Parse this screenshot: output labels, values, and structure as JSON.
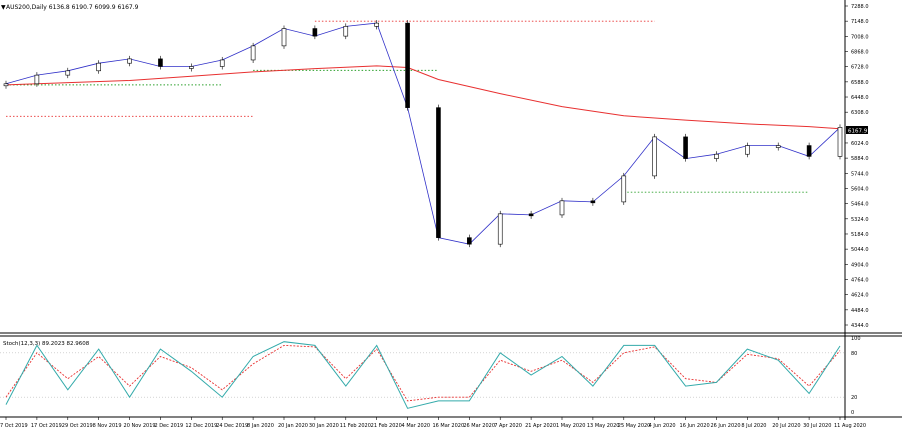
{
  "chart_data": [
    {
      "type": "candlestick",
      "title": "AUS200,Daily  6136.8 6190.7 6099.9 6167.9",
      "current_price_label": "6167.9",
      "ylim": [
        4344,
        7288
      ],
      "y_ticks": [
        {
          "label": "7288.0",
          "value": 7288
        },
        {
          "label": "7148.0",
          "value": 7148
        },
        {
          "label": "7008.0",
          "value": 7008
        },
        {
          "label": "6868.0",
          "value": 6868
        },
        {
          "label": "6728.0",
          "value": 6728
        },
        {
          "label": "6588.0",
          "value": 6588
        },
        {
          "label": "6448.0",
          "value": 6448
        },
        {
          "label": "6308.0",
          "value": 6308
        },
        {
          "label": "6024.0",
          "value": 6024
        },
        {
          "label": "5884.0",
          "value": 5884
        },
        {
          "label": "5744.0",
          "value": 5744
        },
        {
          "label": "5604.0",
          "value": 5604
        },
        {
          "label": "5464.0",
          "value": 5464
        },
        {
          "label": "5324.0",
          "value": 5324
        },
        {
          "label": "5184.0",
          "value": 5184
        },
        {
          "label": "5044.0",
          "value": 5044
        },
        {
          "label": "4904.0",
          "value": 4904
        },
        {
          "label": "4764.0",
          "value": 4764
        },
        {
          "label": "4624.0",
          "value": 4624
        },
        {
          "label": "4484.0",
          "value": 4484
        },
        {
          "label": "4344.0",
          "value": 4344
        }
      ],
      "x_labels": [
        "7 Oct 2019",
        "17 Oct 2019",
        "29 Oct 2019",
        "8 Nov 2019",
        "20 Nov 2019",
        "2 Dec 2019",
        "12 Dec 2019",
        "24 Dec 2019",
        "8 Jan 2020",
        "20 Jan 2020",
        "30 Jan 2020",
        "11 Feb 2020",
        "21 Feb 2020",
        "4 Mar 2020",
        "16 Mar 2020",
        "26 Mar 2020",
        "7 Apr 2020",
        "21 Apr 2020",
        "1 May 2020",
        "13 May 2020",
        "25 May 2020",
        "4 Jun 2020",
        "16 Jun 2020",
        "26 Jun 2020",
        "8 Jul 2020",
        "20 Jul 2020",
        "30 Jul 2020",
        "11 Aug 2020"
      ],
      "series": [
        {
          "values": [
            {
              "x": "7 Oct 2019",
              "y": 6570
            },
            {
              "x": "17 Oct 2019",
              "y": 6650
            },
            {
              "x": "29 Oct 2019",
              "y": 6690
            },
            {
              "x": "8 Nov 2019",
              "y": 6760
            },
            {
              "x": "20 Nov 2019",
              "y": 6800
            },
            {
              "x": "2 Dec 2019",
              "y": 6730
            },
            {
              "x": "12 Dec 2019",
              "y": 6730
            },
            {
              "x": "24 Dec 2019",
              "y": 6790
            },
            {
              "x": "8 Jan 2020",
              "y": 6920
            },
            {
              "x": "20 Jan 2020",
              "y": 7080
            },
            {
              "x": "30 Jan 2020",
              "y": 7010
            },
            {
              "x": "11 Feb 2020",
              "y": 7100
            },
            {
              "x": "21 Feb 2020",
              "y": 7130
            },
            {
              "x": "4 Mar 2020",
              "y": 6350
            },
            {
              "x": "16 Mar 2020",
              "y": 5150
            },
            {
              "x": "26 Mar 2020",
              "y": 5090
            },
            {
              "x": "7 Apr 2020",
              "y": 5370
            },
            {
              "x": "21 Apr 2020",
              "y": 5360
            },
            {
              "x": "1 May 2020",
              "y": 5490
            },
            {
              "x": "13 May 2020",
              "y": 5480
            },
            {
              "x": "25 May 2020",
              "y": 5720
            },
            {
              "x": "4 Jun 2020",
              "y": 6080
            },
            {
              "x": "16 Jun 2020",
              "y": 5880
            },
            {
              "x": "26 Jun 2020",
              "y": 5920
            },
            {
              "x": "8 Jul 2020",
              "y": 6000
            },
            {
              "x": "20 Jul 2020",
              "y": 6000
            },
            {
              "x": "30 Jul 2020",
              "y": 5900
            },
            {
              "x": "11 Aug 2020",
              "y": 6168
            }
          ]
        },
        {
          "values": [
            {
              "x": "7 Oct 2019",
              "y": 6560
            },
            {
              "x": "20 Nov 2019",
              "y": 6600
            },
            {
              "x": "12 Dec 2019",
              "y": 6640
            },
            {
              "x": "8 Jan 2020",
              "y": 6680
            },
            {
              "x": "30 Jan 2020",
              "y": 6710
            },
            {
              "x": "21 Feb 2020",
              "y": 6735
            },
            {
              "x": "4 Mar 2020",
              "y": 6720
            },
            {
              "x": "16 Mar 2020",
              "y": 6610
            },
            {
              "x": "7 Apr 2020",
              "y": 6480
            },
            {
              "x": "1 May 2020",
              "y": 6360
            },
            {
              "x": "25 May 2020",
              "y": 6275
            },
            {
              "x": "16 Jun 2020",
              "y": 6235
            },
            {
              "x": "8 Jul 2020",
              "y": 6200
            },
            {
              "x": "30 Jul 2020",
              "y": 6175
            },
            {
              "x": "11 Aug 2020",
              "y": 6155
            }
          ]
        }
      ],
      "horizontal_levels": [
        {
          "price": 7148,
          "color": "#e83030",
          "from": "30 Jan 2020",
          "to": "4 Jun 2020"
        },
        {
          "price": 6694,
          "color": "#2ca02c",
          "from": "8 Jan 2020",
          "to": "16 Mar 2020"
        },
        {
          "price": 6560,
          "color": "#2ca02c",
          "from": "7 Oct 2019",
          "to": "24 Dec 2019"
        },
        {
          "price": 6270,
          "color": "#e83030",
          "from": "7 Oct 2019",
          "to": "8 Jan 2020"
        },
        {
          "price": 5570,
          "color": "#2ca02c",
          "from": "25 May 2020",
          "to": "30 Jul 2020"
        }
      ],
      "colors": {
        "bull": "#ffffff",
        "bear": "#000000",
        "ma_fast": "#3030c8",
        "ma_slow": "#e83030",
        "grid": "#cccccc"
      },
      "grid": false
    },
    {
      "type": "line",
      "title": "Stoch(12,3,3) 89.2023 82.9608",
      "ylim": [
        0,
        100
      ],
      "y_ticks": [
        {
          "label": "100",
          "value": 100
        },
        {
          "label": "80",
          "value": 80
        },
        {
          "label": "20",
          "value": 20
        },
        {
          "label": "0",
          "value": 0
        }
      ],
      "levels": [
        80,
        20
      ],
      "series": [
        {
          "color": "#33aaaa",
          "values": [
            {
              "x": "7 Oct 2019",
              "y": 10
            },
            {
              "x": "17 Oct 2019",
              "y": 90
            },
            {
              "x": "29 Oct 2019",
              "y": 30
            },
            {
              "x": "8 Nov 2019",
              "y": 85
            },
            {
              "x": "20 Nov 2019",
              "y": 20
            },
            {
              "x": "2 Dec 2019",
              "y": 85
            },
            {
              "x": "12 Dec 2019",
              "y": 55
            },
            {
              "x": "24 Dec 2019",
              "y": 20
            },
            {
              "x": "8 Jan 2020",
              "y": 75
            },
            {
              "x": "20 Jan 2020",
              "y": 95
            },
            {
              "x": "30 Jan 2020",
              "y": 90
            },
            {
              "x": "11 Feb 2020",
              "y": 35
            },
            {
              "x": "21 Feb 2020",
              "y": 90
            },
            {
              "x": "4 Mar 2020",
              "y": 5
            },
            {
              "x": "16 Mar 2020",
              "y": 15
            },
            {
              "x": "26 Mar 2020",
              "y": 15
            },
            {
              "x": "7 Apr 2020",
              "y": 80
            },
            {
              "x": "21 Apr 2020",
              "y": 50
            },
            {
              "x": "1 May 2020",
              "y": 75
            },
            {
              "x": "13 May 2020",
              "y": 35
            },
            {
              "x": "25 May 2020",
              "y": 90
            },
            {
              "x": "4 Jun 2020",
              "y": 90
            },
            {
              "x": "16 Jun 2020",
              "y": 35
            },
            {
              "x": "26 Jun 2020",
              "y": 40
            },
            {
              "x": "8 Jul 2020",
              "y": 85
            },
            {
              "x": "20 Jul 2020",
              "y": 70
            },
            {
              "x": "30 Jul 2020",
              "y": 25
            },
            {
              "x": "11 Aug 2020",
              "y": 89.2
            }
          ]
        },
        {
          "color": "#e83030",
          "values": [
            {
              "x": "7 Oct 2019",
              "y": 20
            },
            {
              "x": "17 Oct 2019",
              "y": 80
            },
            {
              "x": "29 Oct 2019",
              "y": 45
            },
            {
              "x": "8 Nov 2019",
              "y": 75
            },
            {
              "x": "20 Nov 2019",
              "y": 35
            },
            {
              "x": "2 Dec 2019",
              "y": 75
            },
            {
              "x": "12 Dec 2019",
              "y": 60
            },
            {
              "x": "24 Dec 2019",
              "y": 30
            },
            {
              "x": "8 Jan 2020",
              "y": 65
            },
            {
              "x": "20 Jan 2020",
              "y": 90
            },
            {
              "x": "30 Jan 2020",
              "y": 88
            },
            {
              "x": "11 Feb 2020",
              "y": 45
            },
            {
              "x": "21 Feb 2020",
              "y": 85
            },
            {
              "x": "4 Mar 2020",
              "y": 15
            },
            {
              "x": "16 Mar 2020",
              "y": 20
            },
            {
              "x": "26 Mar 2020",
              "y": 20
            },
            {
              "x": "7 Apr 2020",
              "y": 70
            },
            {
              "x": "21 Apr 2020",
              "y": 55
            },
            {
              "x": "1 May 2020",
              "y": 70
            },
            {
              "x": "13 May 2020",
              "y": 40
            },
            {
              "x": "25 May 2020",
              "y": 80
            },
            {
              "x": "4 Jun 2020",
              "y": 88
            },
            {
              "x": "16 Jun 2020",
              "y": 45
            },
            {
              "x": "26 Jun 2020",
              "y": 40
            },
            {
              "x": "8 Jul 2020",
              "y": 78
            },
            {
              "x": "20 Jul 2020",
              "y": 72
            },
            {
              "x": "30 Jul 2020",
              "y": 35
            },
            {
              "x": "11 Aug 2020",
              "y": 82.96
            }
          ]
        }
      ]
    }
  ]
}
